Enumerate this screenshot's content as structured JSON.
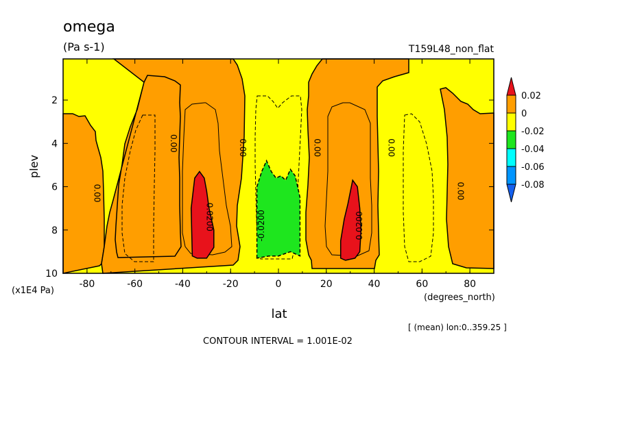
{
  "chart_data": {
    "type": "heatmap",
    "title": "omega",
    "units": "(Pa s-1)",
    "run_label": "T159L48_non_flat",
    "xlabel": "lat",
    "x_units": "(degrees_north)",
    "ylabel": "plev",
    "y_units": "(x1E4 Pa)",
    "subset_note": "[ (mean) lon:0..359.25 ]",
    "contour_interval_text": "CONTOUR INTERVAL = 1.001E-02",
    "xlim": [
      -90,
      90
    ],
    "ylim": [
      10,
      0.1
    ],
    "y_inverted": true,
    "x_ticks": [
      {
        "value": -80,
        "label": "-80"
      },
      {
        "value": -60,
        "label": "-60"
      },
      {
        "value": -40,
        "label": "-40"
      },
      {
        "value": -20,
        "label": "-20"
      },
      {
        "value": 0,
        "label": "0"
      },
      {
        "value": 20,
        "label": "20"
      },
      {
        "value": 40,
        "label": "40"
      },
      {
        "value": 60,
        "label": "60"
      },
      {
        "value": 80,
        "label": "80"
      }
    ],
    "y_ticks": [
      {
        "value": 2,
        "label": "2"
      },
      {
        "value": 4,
        "label": "4"
      },
      {
        "value": 6,
        "label": "6"
      },
      {
        "value": 8,
        "label": "8"
      },
      {
        "value": 10,
        "label": "10"
      }
    ],
    "colorbar": {
      "bins": [
        {
          "range": [
            0.02,
            null
          ],
          "color": "#e8121b"
        },
        {
          "range": [
            0,
            0.02
          ],
          "color": "#ff9e00"
        },
        {
          "range": [
            -0.02,
            0
          ],
          "color": "#ffff00"
        },
        {
          "range": [
            -0.04,
            -0.02
          ],
          "color": "#1ee61e"
        },
        {
          "range": [
            -0.06,
            -0.04
          ],
          "color": "#00ffff"
        },
        {
          "range": [
            -0.08,
            -0.06
          ],
          "color": "#0095ff"
        },
        {
          "range": [
            null,
            -0.08
          ],
          "color": "#1560ee"
        }
      ],
      "labels": [
        {
          "value": 0.02,
          "label": "0.02"
        },
        {
          "value": 0,
          "label": "0"
        },
        {
          "value": -0.02,
          "label": "-0.02"
        },
        {
          "value": -0.04,
          "label": "-0.04"
        },
        {
          "value": -0.06,
          "label": "-0.06"
        },
        {
          "value": -0.08,
          "label": "-0.08"
        }
      ]
    },
    "regions": [
      {
        "name": "tropical-ascent",
        "color": "#1ee61e",
        "points": [
          [
            -9,
            9.3
          ],
          [
            -9,
            6.0
          ],
          [
            -7,
            5.3
          ],
          [
            -5,
            4.8
          ],
          [
            -3,
            5.3
          ],
          [
            -1,
            5.6
          ],
          [
            1,
            5.5
          ],
          [
            3,
            5.7
          ],
          [
            5,
            5.2
          ],
          [
            7,
            5.5
          ],
          [
            9,
            6.5
          ],
          [
            9,
            9.2
          ],
          [
            5,
            9.0
          ],
          [
            0,
            9.2
          ],
          [
            -4,
            9.2
          ]
        ]
      },
      {
        "name": "sh-descent-core",
        "color": "#e8121b",
        "points": [
          [
            -36,
            9.2
          ],
          [
            -36.5,
            7.0
          ],
          [
            -35,
            5.6
          ],
          [
            -33,
            5.3
          ],
          [
            -31,
            5.6
          ],
          [
            -30,
            6.2
          ],
          [
            -29,
            7.0
          ],
          [
            -27,
            8.0
          ],
          [
            -27,
            8.8
          ],
          [
            -30,
            9.3
          ],
          [
            -34,
            9.3
          ]
        ]
      },
      {
        "name": "nh-descent-core",
        "color": "#e8121b",
        "points": [
          [
            26,
            9.3
          ],
          [
            26,
            8.5
          ],
          [
            27.5,
            7.5
          ],
          [
            29,
            6.8
          ],
          [
            31,
            5.7
          ],
          [
            33,
            6.0
          ],
          [
            34,
            7.0
          ],
          [
            34.5,
            8.0
          ],
          [
            34,
            9.0
          ],
          [
            32,
            9.3
          ],
          [
            28,
            9.4
          ]
        ]
      }
    ],
    "contour_labels": [
      {
        "lat": -76,
        "plev": 6.3,
        "text": "0.00",
        "rotate": 90
      },
      {
        "lat": -44,
        "plev": 4.0,
        "text": "0.00",
        "rotate": 90
      },
      {
        "lat": -15,
        "plev": 4.2,
        "text": "0.00",
        "rotate": 90
      },
      {
        "lat": -29,
        "plev": 7.4,
        "text": "0.0200",
        "rotate": 90
      },
      {
        "lat": -7,
        "plev": 7.8,
        "text": "-0.0200",
        "rotate": -90
      },
      {
        "lat": 16,
        "plev": 4.2,
        "text": "0.00",
        "rotate": 90
      },
      {
        "lat": 34,
        "plev": 7.8,
        "text": "0.0200",
        "rotate": -90
      },
      {
        "lat": 47,
        "plev": 4.2,
        "text": "0.00",
        "rotate": 90
      },
      {
        "lat": 76,
        "plev": 6.2,
        "text": "0.00",
        "rotate": 90
      }
    ]
  }
}
